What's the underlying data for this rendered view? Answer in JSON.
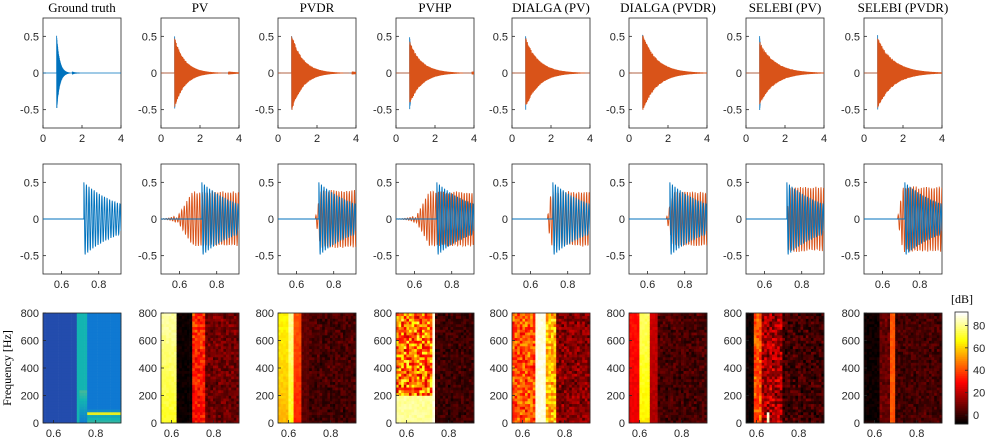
{
  "colors": {
    "reference": "#0072bd",
    "reconstruction": "#d95319",
    "axis": "#262626",
    "background": "#ffffff"
  },
  "chart_data": {
    "type": "figure-grid",
    "titles": [
      "Ground truth",
      "PV",
      "PVDR",
      "PVHP",
      "DIALGA (PV)",
      "DIALGA (PVDR)",
      "SELEBI (PV)",
      "SELEBI (PVDR)"
    ],
    "row1": {
      "type": "line",
      "description_role": "full signal",
      "xlim": [
        0,
        4
      ],
      "ylim": [
        -0.75,
        0.75
      ],
      "xticks": [
        0,
        2,
        4
      ],
      "yticks": [
        -0.5,
        0,
        0.5
      ],
      "x_tick_labels": [
        "0",
        "2",
        "4"
      ],
      "y_tick_labels": [
        "-0.5",
        "0",
        "0.5"
      ],
      "series": [
        {
          "name": "reference",
          "onset": 0.7,
          "peak": 0.5,
          "decay": 0.15
        },
        {
          "name": "reconstruction",
          "onset": 0.7,
          "peak": 0.45,
          "decay": 0.6
        }
      ]
    },
    "row2": {
      "type": "line",
      "description_role": "zoomed onset",
      "xlim": [
        0.5,
        0.92
      ],
      "ylim": [
        -0.75,
        0.75
      ],
      "xticks": [
        0.6,
        0.8
      ],
      "yticks": [
        -0.5,
        0,
        0.5
      ],
      "x_tick_labels": [
        "0.6",
        "0.8"
      ],
      "y_tick_labels": [
        "-0.5",
        "0",
        "0.5"
      ],
      "reference_onset": 0.72,
      "reference_peak": 0.5
    },
    "row3": {
      "type": "heatmap",
      "description_role": "spectrogram error",
      "xlim": [
        0.55,
        0.92
      ],
      "ylim": [
        0,
        800
      ],
      "xticks": [
        0.6,
        0.8
      ],
      "yticks": [
        0,
        200,
        400,
        600,
        800
      ],
      "x_tick_labels": [
        "0.6",
        "0.8"
      ],
      "y_tick_labels": [
        "0",
        "200",
        "400",
        "600",
        "800"
      ],
      "ylabel": "Frequency [Hz]",
      "colorbar": {
        "label": "[dB]",
        "range": [
          -8,
          92
        ],
        "ticks": [
          0,
          20,
          40,
          60,
          80
        ],
        "tick_labels": [
          "0",
          "20",
          "40",
          "60",
          "80"
        ]
      }
    }
  }
}
